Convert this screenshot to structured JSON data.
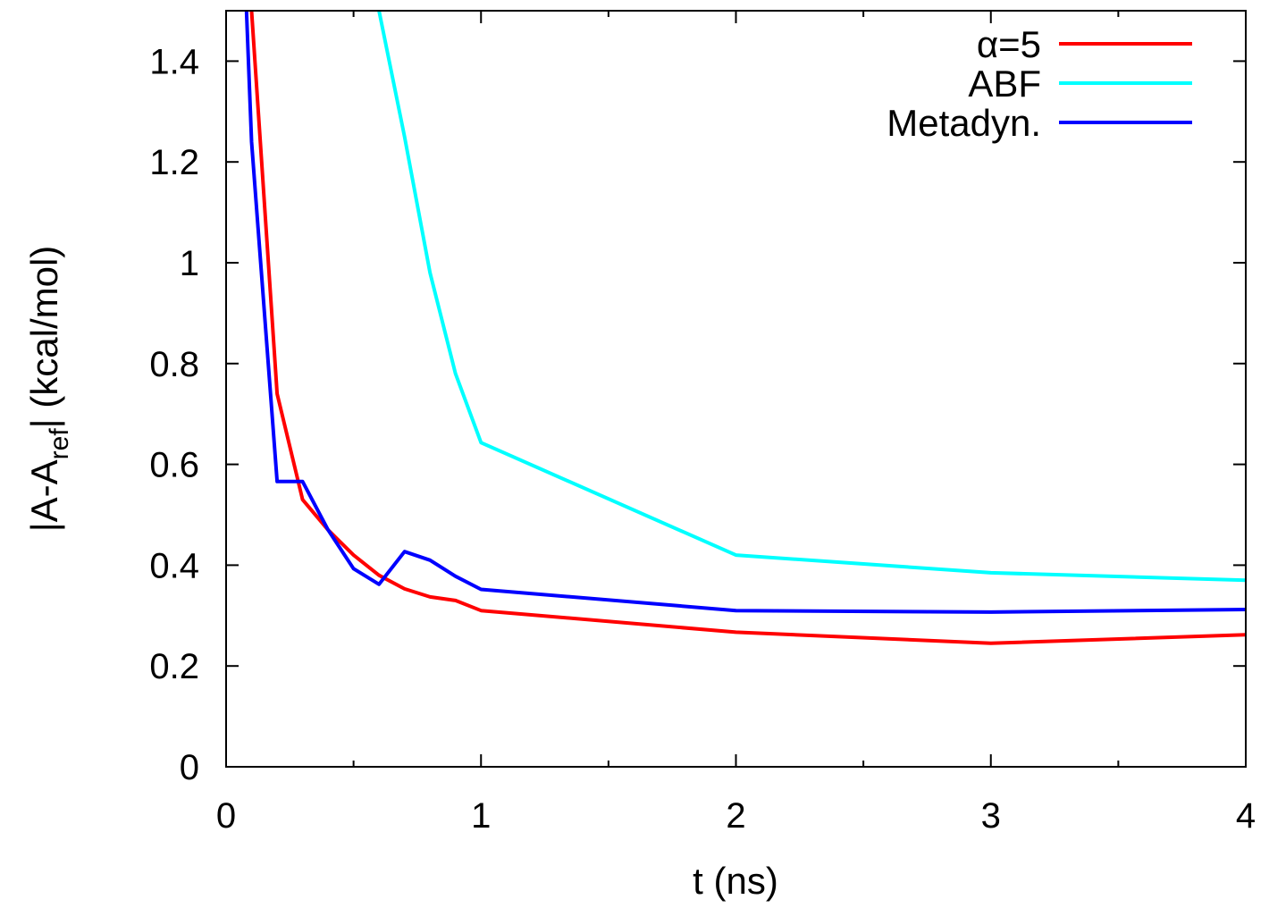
{
  "chart_data": {
    "type": "line",
    "xlabel": "t (ns)",
    "ylabel": {
      "main": "|A-A",
      "sub": "ref",
      "end": "| (kcal/mol)"
    },
    "xlim": [
      0,
      4
    ],
    "ylim": [
      0,
      1.5
    ],
    "xticks": [
      0,
      1,
      2,
      3,
      4
    ],
    "xtick_labels": [
      "0",
      "1",
      "2",
      "3",
      "4"
    ],
    "yticks": [
      0,
      0.2,
      0.4,
      0.6,
      0.8,
      1.0,
      1.2,
      1.4
    ],
    "ytick_labels": [
      "0",
      "0.2",
      "0.4",
      "0.6",
      "0.8",
      "1",
      "1.2",
      "1.4"
    ],
    "grid": false,
    "legend_position": "top-right",
    "series": [
      {
        "name": "α=5",
        "color": "#ff0000",
        "x": [
          0.08,
          0.1,
          0.2,
          0.3,
          0.4,
          0.5,
          0.6,
          0.7,
          0.8,
          0.9,
          1.0,
          2.0,
          3.0,
          4.0
        ],
        "y": [
          1.7,
          1.5,
          0.74,
          0.53,
          0.47,
          0.42,
          0.38,
          0.353,
          0.337,
          0.33,
          0.31,
          0.267,
          0.245,
          0.262
        ]
      },
      {
        "name": "ABF",
        "color": "#00ffff",
        "x": [
          0.55,
          0.6,
          0.7,
          0.8,
          0.9,
          1.0,
          2.0,
          3.0,
          4.0
        ],
        "y": [
          1.7,
          1.5,
          1.25,
          0.98,
          0.78,
          0.643,
          0.42,
          0.385,
          0.37
        ]
      },
      {
        "name": "Metadyn.",
        "color": "#0000ff",
        "x": [
          0.08,
          0.1,
          0.2,
          0.3,
          0.4,
          0.5,
          0.6,
          0.7,
          0.8,
          0.9,
          1.0,
          2.0,
          3.0,
          4.0
        ],
        "y": [
          1.5,
          1.24,
          0.566,
          0.566,
          0.47,
          0.393,
          0.362,
          0.427,
          0.41,
          0.378,
          0.352,
          0.31,
          0.307,
          0.312
        ]
      }
    ]
  }
}
